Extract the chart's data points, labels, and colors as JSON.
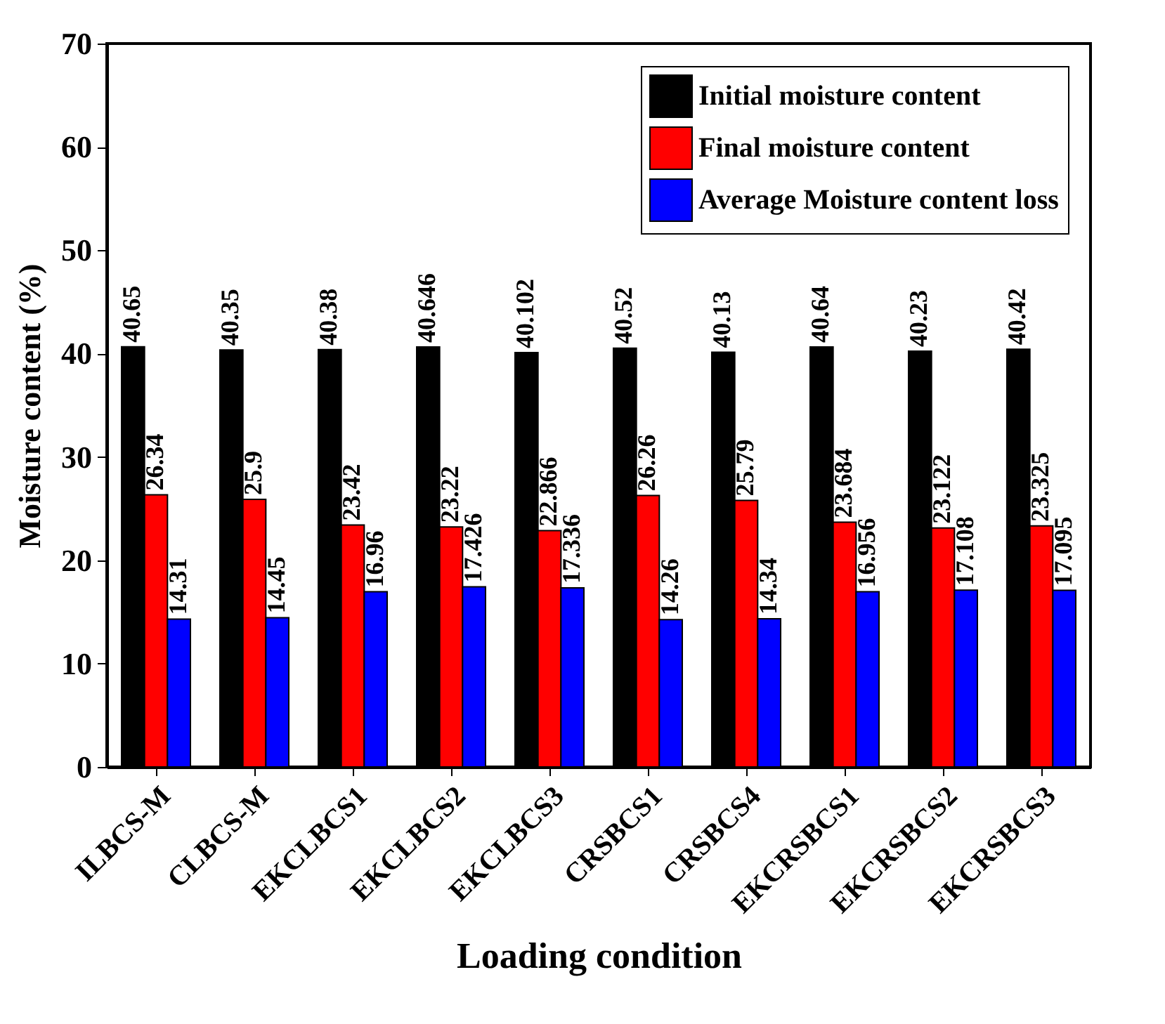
{
  "chart_data": {
    "type": "bar",
    "xlabel": "Loading condition",
    "ylabel": "Moisture content (%)",
    "categories": [
      "ILBCS-M",
      "CLBCS-M",
      "EKCLBCS1",
      "EKCLBCS2",
      "EKCLBCS3",
      "CRSBCS1",
      "CRSBCS4",
      "EKCRSBCS1",
      "EKCRSBCS2",
      "EKCRSBCS3"
    ],
    "series": [
      {
        "name": "Initial moisture content",
        "color": "#000000",
        "values": [
          40.65,
          40.35,
          40.38,
          40.646,
          40.102,
          40.52,
          40.13,
          40.64,
          40.23,
          40.42
        ]
      },
      {
        "name": "Final moisture content",
        "color": "#ff0000",
        "values": [
          26.34,
          25.9,
          23.42,
          23.22,
          22.866,
          26.26,
          25.79,
          23.684,
          23.122,
          23.325
        ]
      },
      {
        "name": "Average Moisture content loss",
        "color": "#0000ff",
        "values": [
          14.31,
          14.45,
          16.96,
          17.426,
          17.336,
          14.26,
          14.34,
          16.956,
          17.108,
          17.095
        ]
      }
    ],
    "ylim": [
      0,
      70
    ],
    "yticks": [
      0,
      10,
      20,
      30,
      40,
      50,
      60,
      70
    ],
    "grid": false,
    "legend": "top right",
    "data_labels": true
  }
}
